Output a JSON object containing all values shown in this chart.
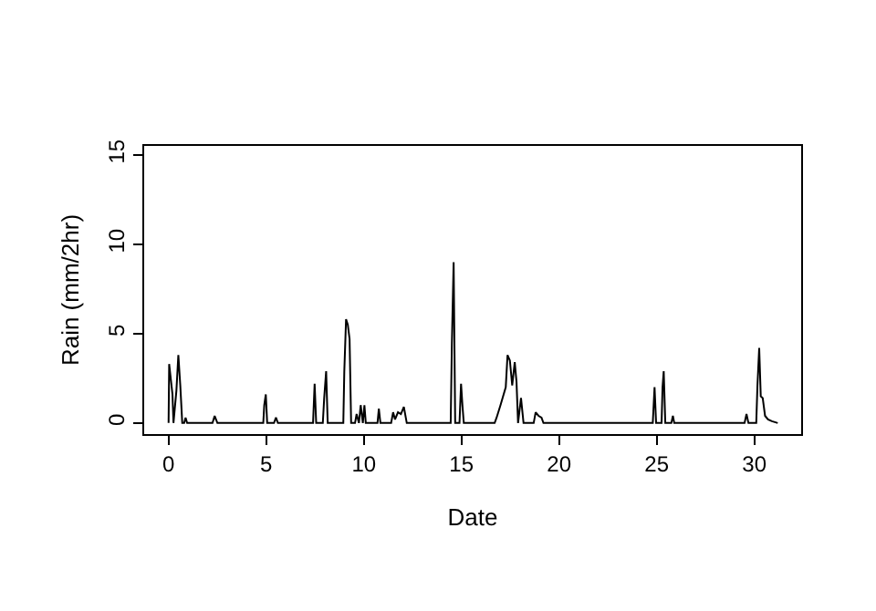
{
  "chart_data": {
    "type": "line",
    "xlabel": "Date",
    "ylabel": "Rain (mm/2hr)",
    "x": [
      0,
      0.03,
      0.2,
      0.25,
      0.4,
      0.5,
      0.6,
      0.7,
      0.8,
      0.87,
      0.95,
      2.25,
      2.36,
      2.5,
      4.85,
      4.9,
      4.98,
      5.05,
      5.4,
      5.5,
      5.6,
      7.4,
      7.48,
      7.56,
      7.9,
      7.97,
      8.07,
      8.15,
      8.95,
      9.0,
      9.09,
      9.18,
      9.27,
      9.35,
      9.55,
      9.63,
      9.75,
      9.84,
      9.95,
      10.03,
      10.1,
      10.7,
      10.77,
      10.85,
      11.4,
      11.5,
      11.6,
      11.75,
      11.9,
      12.05,
      12.2,
      14.45,
      14.51,
      14.6,
      14.68,
      14.9,
      14.98,
      15.05,
      15.12,
      16.7,
      16.8,
      17.0,
      17.27,
      17.36,
      17.48,
      17.6,
      17.73,
      17.82,
      17.9,
      18.05,
      18.18,
      18.7,
      18.8,
      18.95,
      19.1,
      19.2,
      24.8,
      24.89,
      24.97,
      25.25,
      25.3,
      25.36,
      25.44,
      25.75,
      25.83,
      25.9,
      29.5,
      29.6,
      29.7,
      30.1,
      30.16,
      30.25,
      30.33,
      30.43,
      30.55,
      30.7,
      30.9,
      31.2
    ],
    "series": [
      {
        "color": "#000000",
        "values": [
          0,
          3.3,
          1.6,
          0,
          1.8,
          3.8,
          2.1,
          0,
          0,
          0.3,
          0,
          0,
          0.4,
          0,
          0,
          1.0,
          1.6,
          0,
          0,
          0.3,
          0,
          0,
          2.2,
          0,
          0,
          1.4,
          2.9,
          0,
          0,
          2.9,
          5.8,
          5.5,
          4.7,
          0,
          0,
          0.5,
          0,
          1.0,
          0,
          1.0,
          0,
          0,
          0.8,
          0,
          0,
          0.6,
          0.2,
          0.6,
          0.5,
          0.9,
          0,
          0,
          4.5,
          9.0,
          0,
          0,
          2.2,
          1.0,
          0,
          0,
          0.3,
          1.0,
          2.0,
          3.8,
          3.5,
          2.1,
          3.4,
          2.3,
          0,
          1.4,
          0,
          0,
          0.6,
          0.4,
          0.3,
          0,
          0,
          2.0,
          0,
          0,
          2.0,
          2.9,
          0,
          0,
          0.4,
          0,
          0,
          0.5,
          0,
          0,
          2.1,
          4.2,
          1.5,
          1.4,
          0.4,
          0.2,
          0.1,
          0
        ]
      }
    ],
    "xlim": [
      -1.25,
      32.4
    ],
    "ylim": [
      -0.62,
      15.5
    ],
    "xticks": [
      0,
      5,
      10,
      15,
      20,
      25,
      30
    ],
    "yticks": [
      0,
      5,
      10,
      15
    ],
    "marker": "none",
    "line_style": "solid"
  }
}
